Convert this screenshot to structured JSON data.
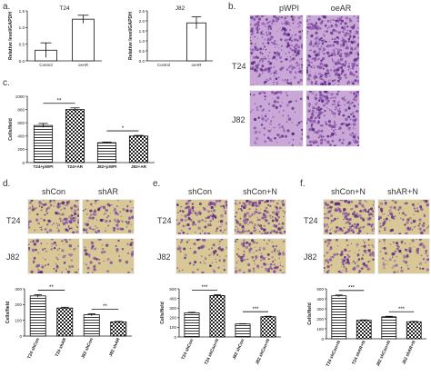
{
  "panels": {
    "a": {
      "letter": "a."
    },
    "b": {
      "letter": "b.",
      "col_titles": [
        "pWPI",
        "oeAR"
      ],
      "row_labels": [
        "T24",
        "J82"
      ]
    },
    "c": {
      "letter": "c."
    },
    "d": {
      "letter": "d.",
      "col_titles": [
        "shCon",
        "shAR"
      ],
      "row_labels": [
        "T24",
        "J82"
      ]
    },
    "e": {
      "letter": "e.",
      "col_titles": [
        "shCon",
        "shCon+N"
      ],
      "row_labels": [
        "T24",
        "J82"
      ]
    },
    "f": {
      "letter": "f.",
      "col_titles": [
        "shCon+N",
        "shAR+N"
      ],
      "row_labels": [
        "T24",
        "J82"
      ]
    }
  },
  "colors": {
    "stain": "#8a4fa8",
    "stain_dark": "#5a2a80",
    "stain_bg_b": "#c9a8d8",
    "stain_bg_def": "#d8c896",
    "axis": "#222222"
  },
  "chart_data": [
    {
      "id": "a1",
      "type": "bar",
      "title": "T24",
      "categories": [
        "Control",
        "oeAR"
      ],
      "values": [
        0.32,
        1.25
      ],
      "errors": [
        0.22,
        0.12
      ],
      "ylabel": "Relative level/GAPDH",
      "ylim": [
        0,
        1.5
      ],
      "yticks": [
        0.0,
        0.5,
        1.0,
        1.5
      ],
      "fills": [
        "solid",
        "solid"
      ],
      "significance": []
    },
    {
      "id": "a2",
      "type": "bar",
      "title": "J82",
      "categories": [
        "Control",
        "oeAR"
      ],
      "values": [
        0.0,
        1.9
      ],
      "errors": [
        0.0,
        0.3
      ],
      "ylabel": "Relative level/GAPDH",
      "ylim": [
        0,
        2.5
      ],
      "yticks": [
        0.0,
        0.5,
        1.0,
        1.5,
        2.0,
        2.5
      ],
      "fills": [
        "solid",
        "solid"
      ],
      "significance": []
    },
    {
      "id": "c",
      "type": "bar",
      "title": "",
      "categories": [
        "T24+pWPI",
        "T24+AR",
        "J82+pWPI",
        "J82+AR"
      ],
      "values": [
        560,
        800,
        300,
        400
      ],
      "errors": [
        30,
        25,
        10,
        10
      ],
      "ylabel": "Cells/field",
      "ylim": [
        0,
        1000
      ],
      "yticks": [
        0,
        200,
        400,
        600,
        800,
        1000
      ],
      "fills": [
        "h",
        "check",
        "h",
        "check"
      ],
      "significance": [
        {
          "from": 0,
          "to": 1,
          "label": "**"
        },
        {
          "from": 2,
          "to": 3,
          "label": "*"
        }
      ]
    },
    {
      "id": "d",
      "type": "bar",
      "title": "",
      "categories": [
        "T24 shCon",
        "T24 shAR",
        "J82 shCon",
        "J82 shAR"
      ],
      "values": [
        255,
        178,
        135,
        90
      ],
      "errors": [
        8,
        5,
        7,
        3
      ],
      "ylabel": "Cells/field",
      "ylim": [
        0,
        300
      ],
      "yticks": [
        0,
        100,
        200,
        300
      ],
      "fills": [
        "h",
        "check",
        "h",
        "check"
      ],
      "significance": [
        {
          "from": 0,
          "to": 1,
          "label": "**"
        },
        {
          "from": 2,
          "to": 3,
          "label": "**"
        }
      ]
    },
    {
      "id": "e",
      "type": "bar",
      "title": "",
      "categories": [
        "T24 shCon",
        "T24 shCon+N",
        "J82 shCon",
        "J82 shCon+N"
      ],
      "values": [
        250,
        430,
        135,
        210
      ],
      "errors": [
        6,
        10,
        3,
        5
      ],
      "ylabel": "Cells/field",
      "ylim": [
        0,
        500
      ],
      "yticks": [
        0,
        100,
        200,
        300,
        400,
        500
      ],
      "fills": [
        "h",
        "check",
        "h",
        "check"
      ],
      "significance": [
        {
          "from": 0,
          "to": 1,
          "label": "***"
        },
        {
          "from": 2,
          "to": 3,
          "label": "***"
        }
      ]
    },
    {
      "id": "f",
      "type": "bar",
      "title": "",
      "categories": [
        "T24 shCon+N",
        "T24 shAR+N",
        "J82 shCon+N",
        "J82 shAR+N"
      ],
      "values": [
        430,
        185,
        220,
        170
      ],
      "errors": [
        8,
        4,
        5,
        4
      ],
      "ylabel": "Cells/field",
      "ylim": [
        0,
        500
      ],
      "yticks": [
        0,
        100,
        200,
        300,
        400,
        500
      ],
      "fills": [
        "h",
        "check",
        "h",
        "check"
      ],
      "significance": [
        {
          "from": 0,
          "to": 1,
          "label": "***"
        },
        {
          "from": 2,
          "to": 3,
          "label": "***"
        }
      ]
    }
  ]
}
